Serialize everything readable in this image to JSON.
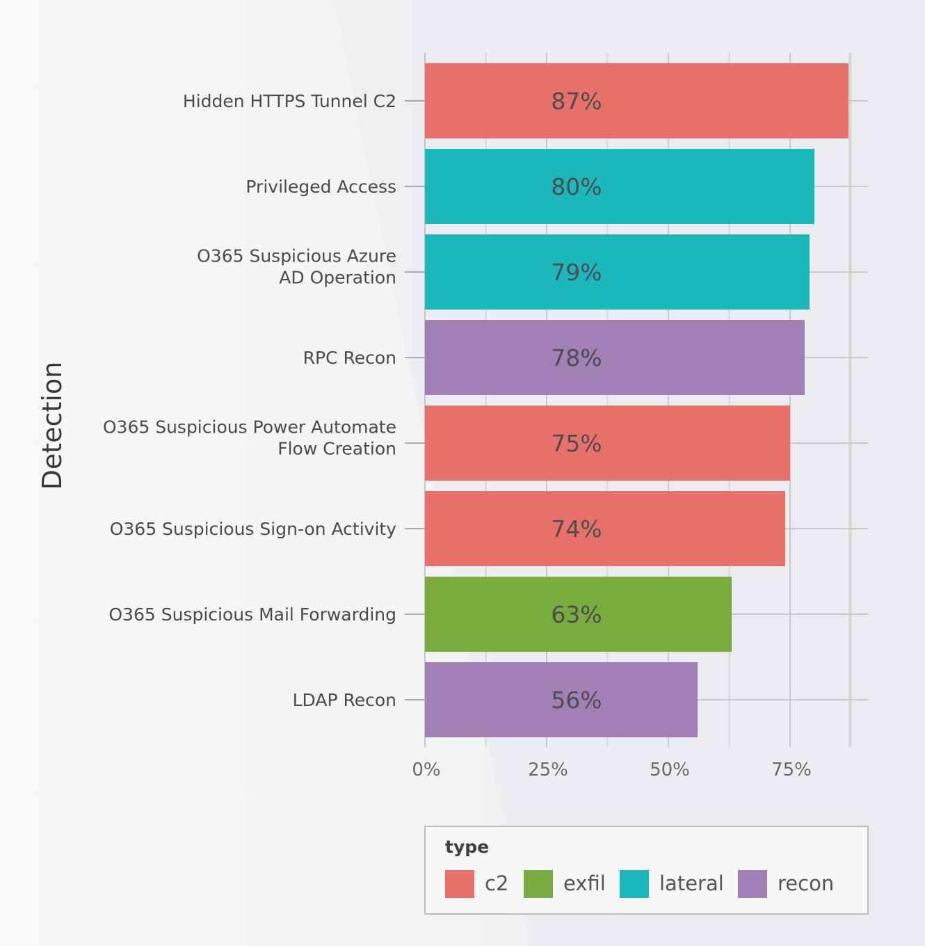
{
  "chart_data": {
    "type": "bar",
    "orientation": "horizontal",
    "ylabel": "Detection",
    "categories": [
      "Hidden HTTPS Tunnel C2",
      "Privileged Access",
      "O365 Suspicious Azure AD Operation",
      "RPC Recon",
      "O365 Suspicious Power Automate Flow Creation",
      "O365 Suspicious Sign-on Activity",
      "O365 Suspicious Mail Forwarding",
      "LDAP Recon"
    ],
    "category_lines": [
      [
        "Hidden HTTPS Tunnel C2"
      ],
      [
        "Privileged Access"
      ],
      [
        "O365 Suspicious Azure",
        "AD Operation"
      ],
      [
        "RPC Recon"
      ],
      [
        "O365 Suspicious Power Automate",
        "Flow Creation"
      ],
      [
        "O365 Suspicious Sign-on Activity"
      ],
      [
        "O365 Suspicious Mail Forwarding"
      ],
      [
        "LDAP Recon"
      ]
    ],
    "values": [
      87,
      80,
      79,
      78,
      75,
      74,
      63,
      56
    ],
    "data_labels": [
      "87%",
      "80%",
      "79%",
      "78%",
      "75%",
      "74%",
      "63%",
      "56%"
    ],
    "types": [
      "c2",
      "lateral",
      "lateral",
      "recon",
      "c2",
      "c2",
      "exfil",
      "recon"
    ],
    "xlim": [
      0,
      88
    ],
    "x_ticks": [
      0,
      25,
      50,
      75
    ],
    "x_tick_labels": [
      "0%",
      "25%",
      "50%",
      "75%"
    ],
    "grid": true,
    "legend": {
      "title": "type",
      "placement": "bottom",
      "entries": [
        {
          "name": "c2",
          "color": "#e8706a"
        },
        {
          "name": "exfil",
          "color": "#79ac3e"
        },
        {
          "name": "lateral",
          "color": "#1ab8bd"
        },
        {
          "name": "recon",
          "color": "#a37fb8"
        }
      ]
    }
  }
}
